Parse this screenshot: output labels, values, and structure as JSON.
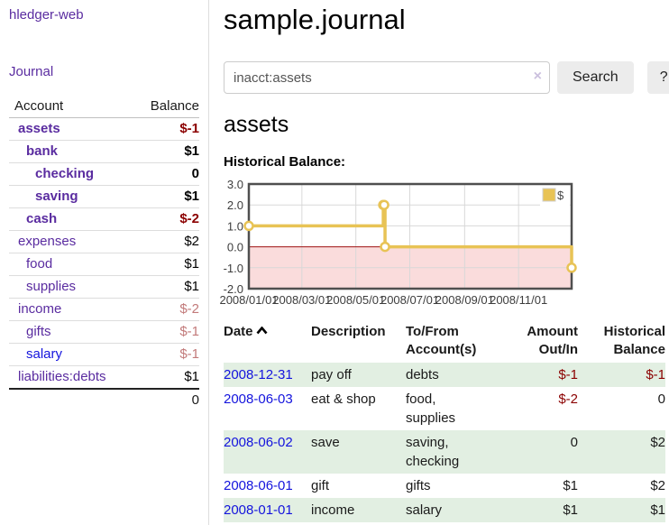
{
  "brand": {
    "label": "hledger-web"
  },
  "nav": {
    "journal": "Journal"
  },
  "sidebar": {
    "columns": {
      "account": "Account",
      "balance": "Balance"
    },
    "accounts": [
      {
        "name": "assets",
        "level": 1,
        "bold": true,
        "color": "purple",
        "balance": "$-1",
        "balance_class": "neg-strong"
      },
      {
        "name": "bank",
        "level": 2,
        "bold": true,
        "color": "purple",
        "balance": "$1",
        "balance_class": "pos-strong"
      },
      {
        "name": "checking",
        "level": 3,
        "bold": true,
        "color": "purple",
        "balance": "0",
        "balance_class": "pos-strong"
      },
      {
        "name": "saving",
        "level": 3,
        "bold": true,
        "color": "purple",
        "balance": "$1",
        "balance_class": "pos-strong"
      },
      {
        "name": "cash",
        "level": 2,
        "bold": true,
        "color": "purple",
        "balance": "$-2",
        "balance_class": "neg-strong"
      },
      {
        "name": "expenses",
        "level": 1,
        "bold": false,
        "color": "purple",
        "balance": "$2",
        "balance_class": "pos"
      },
      {
        "name": "food",
        "level": 2,
        "bold": false,
        "color": "purple",
        "balance": "$1",
        "balance_class": "pos"
      },
      {
        "name": "supplies",
        "level": 2,
        "bold": false,
        "color": "purple",
        "balance": "$1",
        "balance_class": "pos"
      },
      {
        "name": "income",
        "level": 1,
        "bold": false,
        "color": "purple",
        "balance": "$-2",
        "balance_class": "neg-dim"
      },
      {
        "name": "gifts",
        "level": 2,
        "bold": false,
        "color": "purple",
        "balance": "$-1",
        "balance_class": "neg-dim"
      },
      {
        "name": "salary",
        "level": 2,
        "bold": false,
        "color": "blue",
        "balance": "$-1",
        "balance_class": "neg-dim"
      },
      {
        "name": "liabilities:debts",
        "level": 1,
        "bold": false,
        "color": "purple",
        "balance": "$1",
        "balance_class": "pos"
      }
    ],
    "total": "0"
  },
  "page": {
    "title": "sample.journal",
    "account_heading": "assets",
    "chart_label": "Historical Balance:"
  },
  "search": {
    "value": "inacct:assets",
    "clear_icon": "×",
    "search_button": "Search",
    "help_button": "?"
  },
  "chart_data": {
    "type": "line",
    "step": true,
    "title": "Historical Balance",
    "x_range": [
      "2008-01-01",
      "2008-12-31"
    ],
    "ylim": [
      -2,
      3
    ],
    "yticks": [
      3,
      2,
      1,
      0,
      -1,
      -2
    ],
    "xticks": [
      "2008/01/01",
      "2008/03/01",
      "2008/05/01",
      "2008/07/01",
      "2008/09/01",
      "2008/11/01"
    ],
    "legend": {
      "position": "top-right"
    },
    "series": [
      {
        "name": "$",
        "color": "#e8c355",
        "points": [
          [
            "2008-01-01",
            1
          ],
          [
            "2008-06-01",
            2
          ],
          [
            "2008-06-02",
            2
          ],
          [
            "2008-06-03",
            0
          ],
          [
            "2008-12-31",
            -1
          ]
        ]
      }
    ],
    "negative_region_color": "#fadcdc",
    "zero_line_color": "#9e1010",
    "grid_color": "#d8d8d8",
    "border_color": "#4f4f4f"
  },
  "register": {
    "headers": [
      "Date",
      "Description",
      "To/From Account(s)",
      "Amount Out/In",
      "Historical Balance"
    ],
    "rows": [
      {
        "date": "2008-12-31",
        "description": "pay off",
        "accounts": "debts",
        "amount": "$-1",
        "amount_neg": true,
        "balance": "$-1",
        "balance_neg": true
      },
      {
        "date": "2008-06-03",
        "description": "eat & shop",
        "accounts": "food, supplies",
        "amount": "$-2",
        "amount_neg": true,
        "balance": "0",
        "balance_neg": false
      },
      {
        "date": "2008-06-02",
        "description": "save",
        "accounts": "saving, checking",
        "amount": "0",
        "amount_neg": false,
        "balance": "$2",
        "balance_neg": false
      },
      {
        "date": "2008-06-01",
        "description": "gift",
        "accounts": "gifts",
        "amount": "$1",
        "amount_neg": false,
        "balance": "$2",
        "balance_neg": false
      },
      {
        "date": "2008-01-01",
        "description": "income",
        "accounts": "salary",
        "amount": "$1",
        "amount_neg": false,
        "balance": "$1",
        "balance_neg": false
      }
    ]
  }
}
